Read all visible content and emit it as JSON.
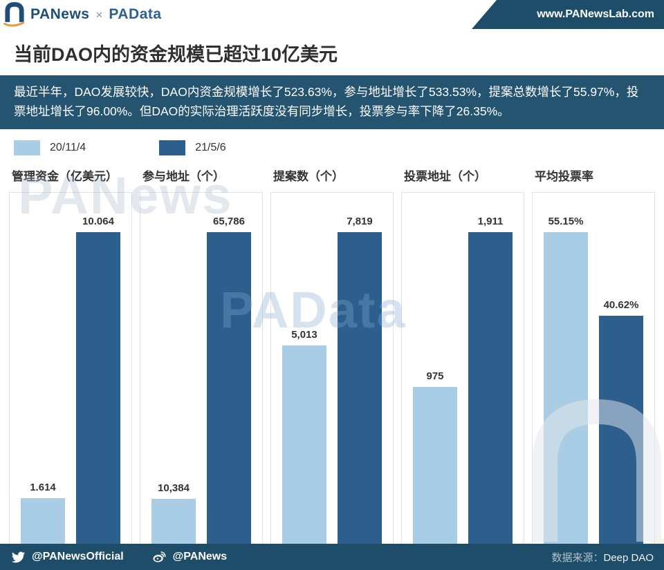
{
  "header": {
    "brand": "PANews",
    "brand_sep": "×",
    "brand2": "PAData",
    "website": "www.PANewsLab.com"
  },
  "title": "当前DAO内的资金规模已超过10亿美元",
  "subtitle": "最近半年，DAO发展较快，DAO内资金规模增长了523.63%，参与地址增长了533.53%，提案总数增长了55.97%，投票地址增长了96.00%。但DAO的实际治理活跃度没有同步增长，投票参与率下降了26.35%。",
  "colors": {
    "navy_strip": "#1d4d68",
    "subtitle_bg": "#24546f",
    "bar_light": "#a9cde4",
    "bar_dark": "#2d5f8e"
  },
  "legend": [
    {
      "label": "20/11/4",
      "color": "#a9cde4"
    },
    {
      "label": "21/5/6",
      "color": "#2d5f8e"
    }
  ],
  "chart_data": {
    "type": "bar",
    "series_names": [
      "20/11/4",
      "21/5/6"
    ],
    "note": "Each panel scales its own max value to full height",
    "panels": [
      {
        "title": "管理资金（亿美元）",
        "values": [
          1.614,
          10.064
        ],
        "labels": [
          "1.614",
          "10.064"
        ]
      },
      {
        "title": "参与地址（个）",
        "values": [
          10384,
          65786
        ],
        "labels": [
          "10,384",
          "65,786"
        ]
      },
      {
        "title": "提案数（个）",
        "values": [
          5013,
          7819
        ],
        "labels": [
          "5,013",
          "7,819"
        ]
      },
      {
        "title": "投票地址（个）",
        "values": [
          975,
          1911
        ],
        "labels": [
          "975",
          "1,911"
        ]
      },
      {
        "title": "平均投票率",
        "values": [
          55.15,
          40.62
        ],
        "labels": [
          "55.15%",
          "40.62%"
        ]
      }
    ]
  },
  "watermarks": {
    "top": "PANews",
    "mid": "PAData"
  },
  "footer": {
    "twitter_handle": "@PANewsOfficial",
    "weibo_handle": "@PANews",
    "source_label": "数据来源：",
    "source_value": "Deep DAO"
  }
}
